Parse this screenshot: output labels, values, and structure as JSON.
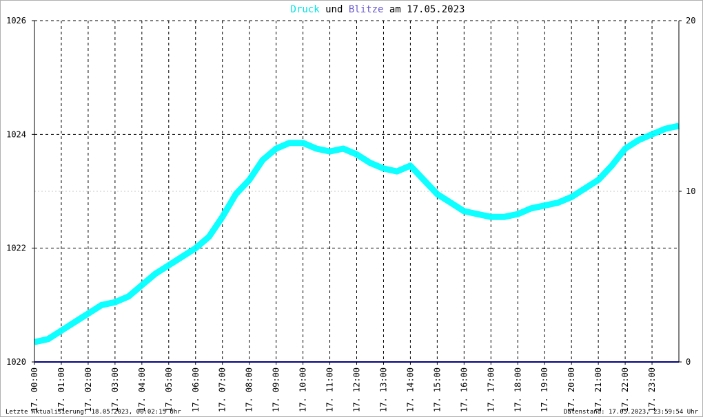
{
  "chart_data": {
    "type": "line",
    "title_parts": [
      "Druck",
      " und ",
      "Blitze",
      " am 17.05.2023"
    ],
    "title_colors": [
      "#00e5e5",
      "#000000",
      "#6a5acd",
      "#000000"
    ],
    "y_left": {
      "ylim": [
        1020,
        1026
      ],
      "ticks": [
        "1020",
        "1022",
        "1024",
        "1026"
      ]
    },
    "y_right": {
      "ylim": [
        0,
        20
      ],
      "ticks": [
        "0",
        "10",
        "20"
      ]
    },
    "x_ticks": [
      "17. 00:00",
      "17. 01:00",
      "17. 02:00",
      "17. 03:00",
      "17. 04:00",
      "17. 05:00",
      "17. 06:00",
      "17. 07:00",
      "17. 08:00",
      "17. 09:00",
      "17. 10:00",
      "17. 11:00",
      "17. 12:00",
      "17. 13:00",
      "17. 14:00",
      "17. 15:00",
      "17. 16:00",
      "17. 17:00",
      "17. 18:00",
      "17. 19:00",
      "17. 20:00",
      "17. 21:00",
      "17. 22:00",
      "17. 23:00"
    ],
    "grid": true,
    "series": [
      {
        "name": "Druck",
        "axis": "left",
        "color": "#00ffff",
        "x_hours": [
          0,
          0.5,
          1,
          1.5,
          2,
          2.5,
          3,
          3.5,
          4,
          4.5,
          5,
          5.5,
          6,
          6.5,
          7,
          7.5,
          8,
          8.5,
          9,
          9.5,
          10,
          10.5,
          11,
          11.5,
          12,
          12.5,
          13,
          13.5,
          14,
          14.5,
          15,
          15.5,
          16,
          16.5,
          17,
          17.5,
          18,
          18.5,
          19,
          19.5,
          20,
          20.5,
          21,
          21.5,
          22,
          22.5,
          23,
          23.5,
          24
        ],
        "values": [
          1020.35,
          1020.4,
          1020.55,
          1020.7,
          1020.85,
          1021.0,
          1021.05,
          1021.15,
          1021.35,
          1021.55,
          1021.7,
          1021.85,
          1022.0,
          1022.2,
          1022.55,
          1022.95,
          1023.2,
          1023.55,
          1023.75,
          1023.85,
          1023.85,
          1023.75,
          1023.7,
          1023.75,
          1023.65,
          1023.5,
          1023.4,
          1023.35,
          1023.45,
          1023.2,
          1022.95,
          1022.8,
          1022.65,
          1022.6,
          1022.55,
          1022.55,
          1022.6,
          1022.7,
          1022.75,
          1022.8,
          1022.9,
          1023.05,
          1023.2,
          1023.45,
          1023.75,
          1023.9,
          1024.0,
          1024.1,
          1024.15
        ]
      },
      {
        "name": "Blitze",
        "axis": "right",
        "color": "#00007a",
        "x_hours": [
          0,
          24
        ],
        "values": [
          0,
          0
        ]
      }
    ]
  },
  "footer": {
    "left": "Letzte Aktualisierung: 18.05.2023, 00:02:15 Uhr",
    "right": "Datenstand: 17.05.2023, 23:59:54 Uhr"
  }
}
